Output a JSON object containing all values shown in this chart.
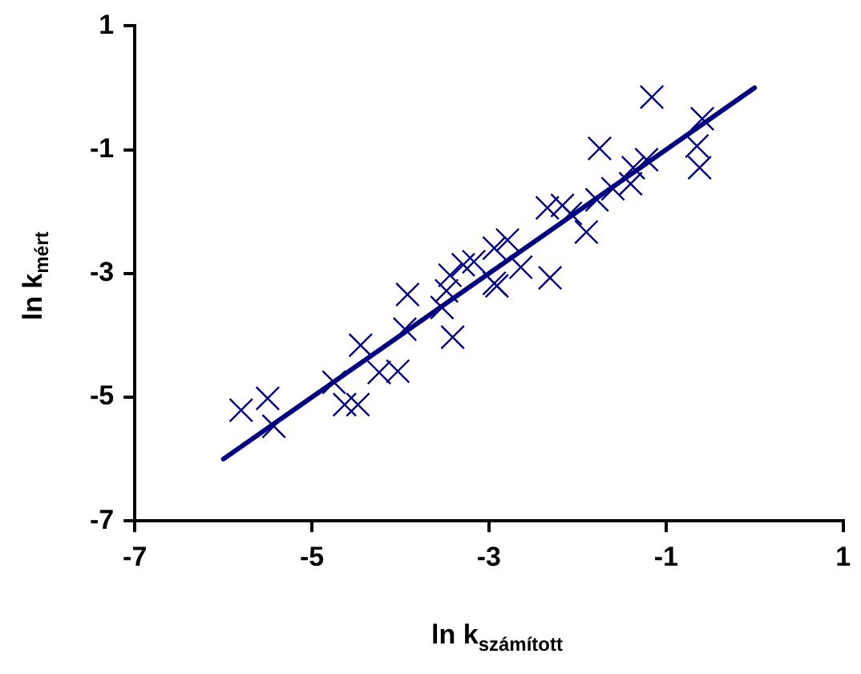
{
  "chart_data": {
    "type": "scatter",
    "xlabel": "ln k$_{számított}$",
    "ylabel": "ln k$_{mért}$",
    "xlim": [
      -7,
      1
    ],
    "xticks": [
      -7,
      -5,
      -3,
      -1,
      1
    ],
    "ylim": [
      -7,
      1
    ],
    "yticks": [
      -7,
      -5,
      -3,
      -1,
      1
    ],
    "grid": false,
    "marker": "cross",
    "series": [
      {
        "color": "#000080",
        "x": [
          -5.8,
          -5.5,
          -5.43,
          -4.75,
          -4.63,
          -4.48,
          -4.45,
          -4.24,
          -4.03,
          -3.92,
          -3.95,
          -3.53,
          -3.41,
          -3.44,
          -3.29,
          -3.17,
          -2.94,
          -2.94,
          -3.48,
          -2.91,
          -2.79,
          -2.64,
          -2.31,
          -2.34,
          -2.17,
          -2.08,
          -1.9,
          -1.78,
          -1.75,
          -1.6,
          -1.4,
          -1.37,
          -1.22,
          -1.16,
          -0.59,
          -0.65,
          -0.62
        ],
        "values": [
          -5.21,
          -5.02,
          -5.47,
          -4.76,
          -5.12,
          -5.12,
          -4.16,
          -4.6,
          -4.58,
          -3.34,
          -3.9,
          -3.55,
          -4.03,
          -3.03,
          -2.86,
          -2.81,
          -2.59,
          -3.16,
          -3.28,
          -3.2,
          -2.46,
          -2.9,
          -3.07,
          -1.94,
          -1.9,
          -2.03,
          -2.33,
          -1.81,
          -0.98,
          -1.63,
          -1.55,
          -1.29,
          -1.16,
          -0.15,
          -0.5,
          -0.94,
          -1.29
        ]
      },
      {
        "type": "line",
        "color": "#000080",
        "marker": "none",
        "x": [
          -6,
          0
        ],
        "values": [
          -6,
          0
        ]
      }
    ]
  }
}
